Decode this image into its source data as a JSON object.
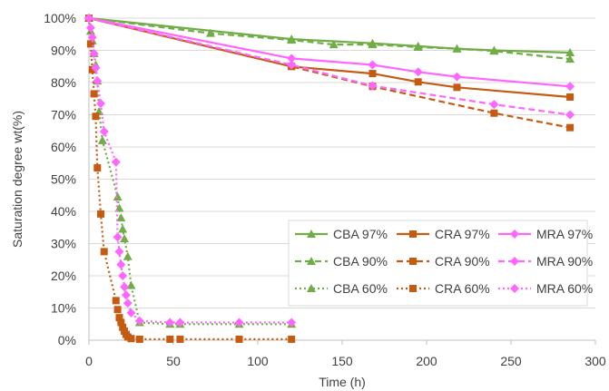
{
  "chart_data": {
    "type": "line",
    "title": "",
    "xlabel": "Time (h)",
    "ylabel": "Saturation degree wt(%)",
    "xlim": [
      0,
      300
    ],
    "ylim": [
      0,
      100
    ],
    "xticks": [
      0,
      50,
      100,
      150,
      200,
      250,
      300
    ],
    "yticks": [
      0,
      10,
      20,
      30,
      40,
      50,
      60,
      70,
      80,
      90,
      100
    ],
    "ytick_suffix": "%",
    "grid": "horizontal",
    "legend_position": "bottom-right",
    "series": [
      {
        "name": "CBA 97%",
        "color": "#70ad47",
        "marker": "triangle",
        "line": "solid",
        "x": [
          0,
          120,
          168,
          195,
          218,
          240,
          285
        ],
        "y": [
          100,
          93.5,
          92.2,
          91.3,
          90.5,
          90,
          89.3
        ]
      },
      {
        "name": "CBA 90%",
        "color": "#70ad47",
        "marker": "triangle",
        "line": "dashed",
        "x": [
          0,
          72,
          120,
          145,
          168,
          195,
          218,
          240,
          285
        ],
        "y": [
          100,
          95.3,
          93.2,
          91.8,
          91.8,
          91,
          90.5,
          89.8,
          87.3
        ]
      },
      {
        "name": "CBA 60%",
        "color": "#70ad47",
        "marker": "triangle",
        "line": "dotted",
        "x": [
          0,
          1,
          2,
          3,
          4,
          5,
          6,
          8,
          17,
          18,
          19,
          20,
          21,
          23,
          25,
          30,
          48,
          54,
          89,
          120
        ],
        "y": [
          100,
          96,
          93,
          89,
          85.5,
          80.5,
          71,
          62,
          44.5,
          41,
          38,
          34.5,
          31.5,
          26,
          17,
          5.5,
          5,
          5,
          5,
          5
        ]
      },
      {
        "name": "CRA 97%",
        "color": "#c55a11",
        "marker": "square",
        "line": "solid",
        "x": [
          0,
          120,
          168,
          195,
          218,
          285
        ],
        "y": [
          100,
          85,
          82.8,
          80.2,
          78.5,
          75.5
        ]
      },
      {
        "name": "CRA 90%",
        "color": "#c55a11",
        "marker": "square",
        "line": "dashed",
        "x": [
          0,
          120,
          168,
          240,
          285
        ],
        "y": [
          100,
          85,
          78.8,
          70.5,
          66
        ]
      },
      {
        "name": "CRA 60%",
        "color": "#c55a11",
        "marker": "square",
        "line": "dotted",
        "x": [
          0,
          1,
          2,
          3,
          4,
          5,
          7,
          9,
          16,
          17,
          18,
          19,
          20,
          21,
          22,
          23,
          25,
          30,
          48,
          54,
          89,
          120
        ],
        "y": [
          100,
          92,
          84,
          76.5,
          69.5,
          53.5,
          39.2,
          27.5,
          12.3,
          9.5,
          7,
          5.5,
          4,
          2.8,
          1.8,
          1,
          0.5,
          0.3,
          0.3,
          0.3,
          0.3,
          0.3
        ]
      },
      {
        "name": "MRA 97%",
        "color": "#ff66ff",
        "marker": "diamond",
        "line": "solid",
        "x": [
          0,
          120,
          168,
          195,
          218,
          285
        ],
        "y": [
          100,
          87.5,
          85.5,
          83.3,
          81.8,
          78.8
        ]
      },
      {
        "name": "MRA 90%",
        "color": "#ff66ff",
        "marker": "diamond",
        "line": "dashed",
        "x": [
          0,
          120,
          168,
          240,
          285
        ],
        "y": [
          100,
          85.5,
          79,
          73.2,
          70
        ]
      },
      {
        "name": "MRA 60%",
        "color": "#ff66ff",
        "marker": "diamond",
        "line": "dotted",
        "x": [
          0,
          1,
          2,
          3,
          4,
          5,
          7,
          9,
          16,
          17,
          18,
          19,
          20,
          21,
          22,
          23,
          25,
          30,
          48,
          54,
          89,
          120
        ],
        "y": [
          100,
          97,
          94,
          89,
          84.5,
          80.5,
          73.5,
          64.8,
          55.3,
          32,
          27.5,
          23.5,
          20,
          16.5,
          14,
          11.5,
          8.5,
          6,
          5.5,
          5.5,
          5.5,
          5.5
        ]
      }
    ]
  }
}
